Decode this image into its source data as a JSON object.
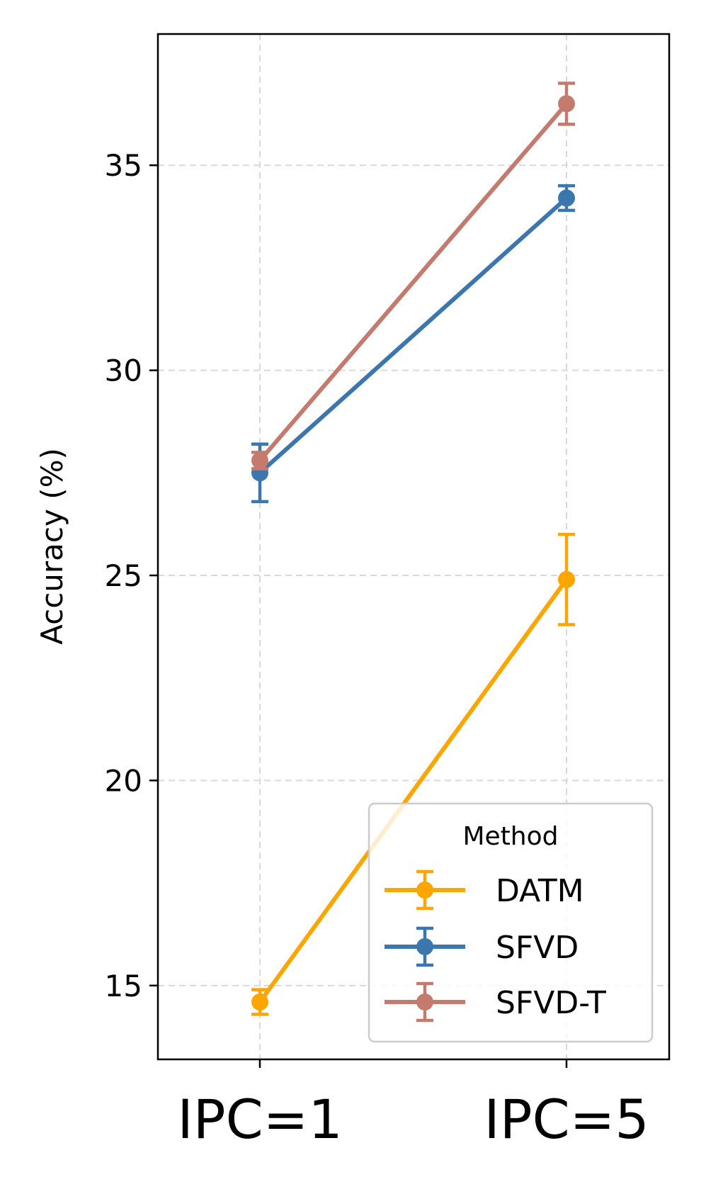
{
  "chart_data": {
    "type": "line",
    "title": "",
    "xlabel": "",
    "ylabel": "Accuracy (%)",
    "categories": [
      "IPC=1",
      "IPC=5"
    ],
    "ylim": [
      13.2,
      38.2
    ],
    "yticks": [
      15,
      20,
      25,
      30,
      35
    ],
    "grid": true,
    "legend": {
      "title": "Method",
      "placement": "lower-right"
    },
    "series": [
      {
        "name": "DATM",
        "color": "#ffa500",
        "values": [
          14.6,
          24.9
        ],
        "errors": [
          0.3,
          1.1
        ]
      },
      {
        "name": "SFVD",
        "color": "#3b76af",
        "values": [
          27.5,
          34.2
        ],
        "errors": [
          0.7,
          0.3
        ]
      },
      {
        "name": "SFVD-T",
        "color": "#c57a6e",
        "values": [
          27.8,
          36.5
        ],
        "errors": [
          0.2,
          0.5
        ]
      }
    ]
  }
}
